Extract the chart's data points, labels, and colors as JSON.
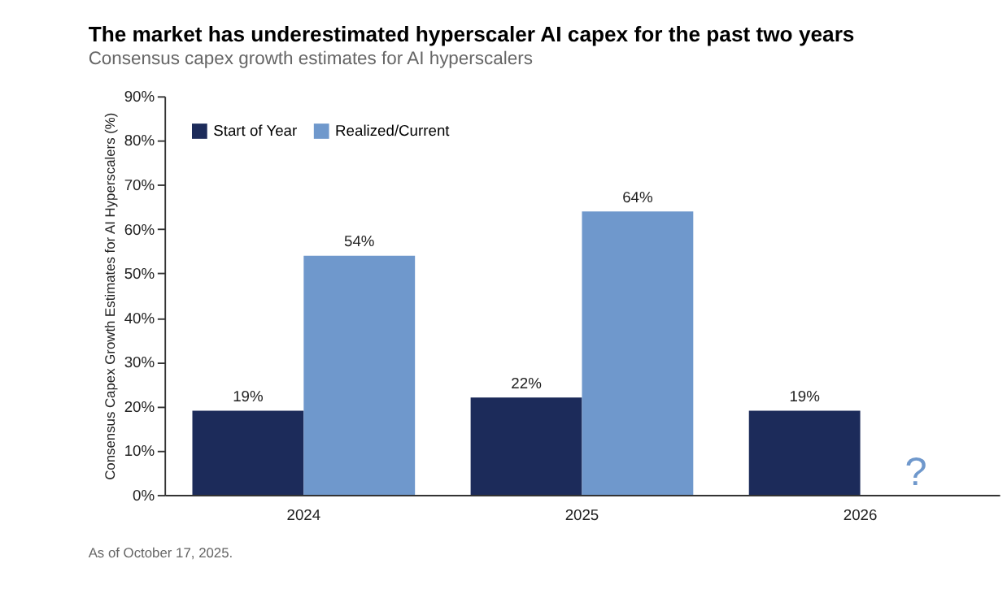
{
  "chart_data": {
    "type": "bar",
    "title": "The market has underestimated hyperscaler AI capex for the past two years",
    "subtitle": "Consensus capex growth estimates for AI hyperscalers",
    "ylabel": "Consensus Capex Growth Estimates for AI Hyperscalers (%)",
    "categories": [
      "2024",
      "2025",
      "2026"
    ],
    "series": [
      {
        "name": "Start of Year",
        "color": "#1c2b5a",
        "values": [
          19,
          22,
          19
        ],
        "value_labels": [
          "19%",
          "22%",
          "19%"
        ]
      },
      {
        "name": "Realized/Current",
        "color": "#6f98cc",
        "values": [
          54,
          64,
          null
        ],
        "value_labels": [
          "54%",
          "64%",
          null
        ]
      }
    ],
    "ylim": [
      0,
      90
    ],
    "yticks": [
      {
        "value": 0,
        "label": "0%"
      },
      {
        "value": 10,
        "label": "10%"
      },
      {
        "value": 20,
        "label": "20%"
      },
      {
        "value": 30,
        "label": "30%"
      },
      {
        "value": 40,
        "label": "40%"
      },
      {
        "value": 50,
        "label": "50%"
      },
      {
        "value": 60,
        "label": "60%"
      },
      {
        "value": 70,
        "label": "70%"
      },
      {
        "value": 80,
        "label": "80%"
      },
      {
        "value": 90,
        "label": "90%"
      }
    ],
    "grid": false,
    "legend": "top left",
    "annotations": [
      {
        "text": "?",
        "x": "2026",
        "y": 5
      },
      "As of October 17, 2025."
    ]
  }
}
